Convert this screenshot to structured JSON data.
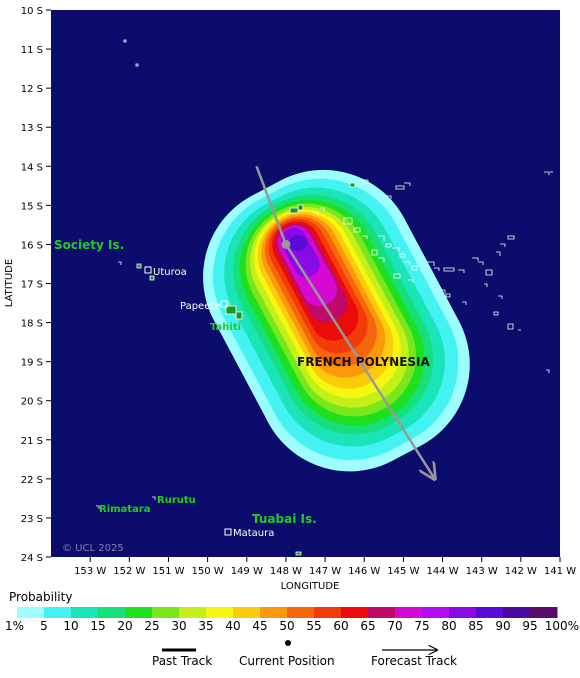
{
  "map": {
    "background": "#0b0c6b",
    "land_color": "#1a9a1a",
    "axis_title_x": "LONGITUDE",
    "axis_title_y": "LATITUDE",
    "lat_labels": [
      "10 S",
      "11 S",
      "12 S",
      "13 S",
      "14 S",
      "15 S",
      "16 S",
      "17 S",
      "18 S",
      "19 S",
      "20 S",
      "21 S",
      "22 S",
      "23 S",
      "24 S"
    ],
    "lon_labels": [
      "153 W",
      "152 W",
      "151 W",
      "150 W",
      "149 W",
      "148 W",
      "147 W",
      "146 W",
      "145 W",
      "144 W",
      "143 W",
      "142 W",
      "141 W"
    ],
    "copyright": "© UCL 2025",
    "regions": [
      {
        "name": "Society Is."
      },
      {
        "name": "Tuabai Is."
      },
      {
        "name": "FRENCH POLYNESIA"
      }
    ],
    "places": [
      {
        "name": "Uturoa"
      },
      {
        "name": "Papeete"
      },
      {
        "name": "Tahiti"
      },
      {
        "name": "Rurutu"
      },
      {
        "name": "Rimatara"
      },
      {
        "name": "Mataura"
      }
    ]
  },
  "track": {
    "current_position": {
      "lon": -148.0,
      "lat": -16.0
    },
    "past": [
      {
        "lon": -148.75,
        "lat": -14.0
      },
      {
        "lon": -148.0,
        "lat": -16.0
      }
    ],
    "forecast": [
      {
        "lon": -148.0,
        "lat": -16.0
      },
      {
        "lon": -144.2,
        "lat": -22.0
      }
    ]
  },
  "legend": {
    "title": "Probability",
    "colors": [
      "#9cfefe",
      "#44f2f2",
      "#1ae4b8",
      "#16e07a",
      "#1ee01e",
      "#7ae61e",
      "#c2f018",
      "#f6f610",
      "#fbcc0c",
      "#fa9a0a",
      "#f7660a",
      "#f33a0a",
      "#ec0a0a",
      "#c00a6a",
      "#d40ad4",
      "#b40af0",
      "#8a0ae6",
      "#5a0ad2",
      "#4a0aa0",
      "#5a0a6a"
    ],
    "labels": [
      "1%",
      "5",
      "10",
      "15",
      "20",
      "25",
      "30",
      "35",
      "40",
      "45",
      "50",
      "55",
      "60",
      "65",
      "70",
      "75",
      "80",
      "85",
      "90",
      "95",
      "100%"
    ]
  },
  "key": {
    "past_track": "Past Track",
    "current_position": "Current Position",
    "forecast_track": "Forecast Track"
  }
}
